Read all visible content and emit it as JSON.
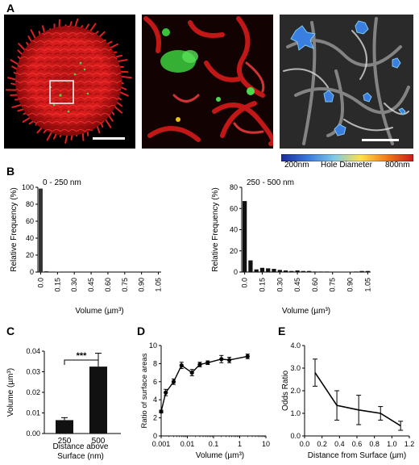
{
  "panels": {
    "A": "A",
    "B": "B",
    "C": "C",
    "D": "D",
    "E": "E"
  },
  "colorbar": {
    "min_label": "200nm",
    "title": "Hole Diameter",
    "max_label": "800nm",
    "colors": [
      "#1a2a9a",
      "#3a78d8",
      "#7ec8e8",
      "#ffe14a",
      "#f07a1a",
      "#c81a1a"
    ]
  },
  "charts": [
    {
      "id": "B-left",
      "chart_data": {
        "type": "bar",
        "title": "0 - 250 nm",
        "xlabel": "Volume (µm³)",
        "ylabel": "Relative Frequency (%)",
        "ylim": [
          0,
          100
        ],
        "yticks": [
          "0",
          "20",
          "40",
          "60",
          "80",
          "100"
        ],
        "xticks": [
          "0.0",
          "0.15",
          "0.30",
          "0.45",
          "0.60",
          "0.75",
          "0.90",
          "1.05"
        ],
        "values": [
          98.5,
          1.0,
          0,
          0.5,
          0,
          0,
          0,
          0,
          0,
          0,
          0,
          0,
          0,
          0,
          0,
          0,
          0,
          0,
          0,
          0,
          0,
          0
        ],
        "bar_color": "#333333"
      }
    },
    {
      "id": "B-right",
      "chart_data": {
        "type": "bar",
        "title": "250 - 500 nm",
        "xlabel": "Volume (µm³)",
        "ylabel": "Relative Frequency (%)",
        "ylim": [
          0,
          80
        ],
        "yticks": [
          "0",
          "20",
          "40",
          "60",
          "80"
        ],
        "xticks": [
          "0.0",
          "0.15",
          "0.30",
          "0.45",
          "0.60",
          "0.75",
          "0.90",
          "1.05"
        ],
        "values": [
          67,
          11,
          2.5,
          4,
          3.5,
          3,
          2,
          1.5,
          1,
          1.5,
          1,
          1,
          0.5,
          0.5,
          0.5,
          0,
          0,
          0,
          0,
          0.5,
          1,
          1
        ],
        "bar_color": "#111111"
      }
    },
    {
      "id": "C",
      "chart_data": {
        "type": "bar",
        "categories": [
          "250",
          "500"
        ],
        "values": [
          0.0065,
          0.0325
        ],
        "errors": [
          0.0012,
          0.0065
        ],
        "xlabel": "Distance above Surface (nm)",
        "ylabel": "Volume (µm³)",
        "ylim": [
          0,
          0.04
        ],
        "yticks": [
          "0.00",
          "0.01",
          "0.02",
          "0.03",
          "0.04"
        ],
        "significance": "***",
        "bar_color": "#111111"
      }
    },
    {
      "id": "D",
      "chart_data": {
        "type": "line",
        "xscale": "log",
        "x": [
          0.001,
          0.0015,
          0.003,
          0.006,
          0.015,
          0.03,
          0.06,
          0.2,
          0.4,
          2
        ],
        "y": [
          2.7,
          4.8,
          6.0,
          7.8,
          7.0,
          7.9,
          8.1,
          8.5,
          8.4,
          8.8
        ],
        "yerr": [
          0.15,
          0.35,
          0.3,
          0.35,
          0.35,
          0.25,
          0.2,
          0.4,
          0.3,
          0.25
        ],
        "xlabel": "Volume (µm³)",
        "ylabel": "Ratio of surface areas",
        "xlim": [
          0.001,
          10
        ],
        "ylim": [
          0,
          10
        ],
        "xticks": [
          "0.001",
          "0.01",
          "0.1",
          "1",
          "10"
        ],
        "yticks": [
          "0",
          "2",
          "4",
          "6",
          "8",
          "10"
        ]
      }
    },
    {
      "id": "E",
      "chart_data": {
        "type": "line",
        "x": [
          0.12,
          0.37,
          0.62,
          0.87,
          1.1
        ],
        "y": [
          2.8,
          1.35,
          1.15,
          1.0,
          0.45
        ],
        "yerr": [
          0.6,
          0.65,
          0.65,
          0.3,
          0.2
        ],
        "xlabel": "Distance from Surface (µm)",
        "ylabel": "Odds Ratio",
        "xlim": [
          0,
          1.2
        ],
        "ylim": [
          0,
          4
        ],
        "xticks": [
          "0.0",
          "0.2",
          "0.4",
          "0.6",
          "0.8",
          "1.0",
          "1.2"
        ],
        "yticks": [
          "0.0",
          "1.0",
          "2.0",
          "3.0",
          "4.0"
        ]
      }
    }
  ]
}
